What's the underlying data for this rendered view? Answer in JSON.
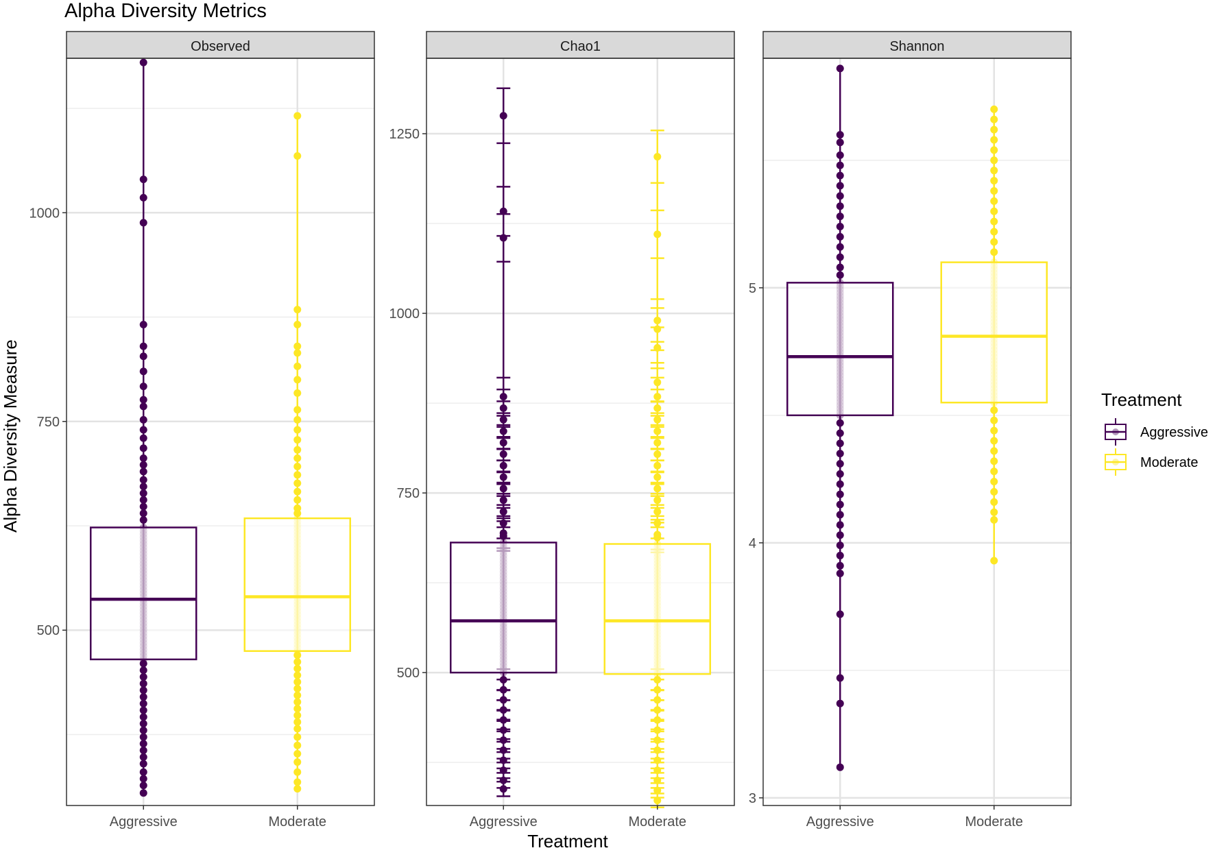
{
  "chart_data": {
    "type": "boxplot",
    "title": "Alpha Diversity Metrics",
    "xlabel": "Treatment",
    "ylabel": "Alpha Diversity Measure",
    "categories": [
      "Aggressive",
      "Moderate"
    ],
    "legend": {
      "title": "Treatment",
      "position": "right",
      "items": [
        {
          "label": "Aggressive",
          "color": "#440154"
        },
        {
          "label": "Moderate",
          "color": "#FDE725"
        }
      ]
    },
    "panels": [
      {
        "facet": "Observed",
        "ylim": [
          290,
          1185
        ],
        "yticks": [
          500,
          750,
          1000
        ],
        "ytick_labels": [
          "500",
          "750",
          "1000"
        ],
        "error_bars": false,
        "groups": [
          {
            "category": "Aggressive",
            "color": "#440154",
            "box": {
              "min": 305,
              "q1": 465,
              "median": 537,
              "q3": 623,
              "max": 1180
            },
            "points": [
              1180,
              1040,
              1018,
              988,
              866,
              840,
              828,
              810,
              792,
              776,
              768,
              752,
              740,
              730,
              718,
              706,
              698,
              690,
              680,
              672,
              664,
              656,
              648,
              640,
              632,
              460,
              452,
              444,
              436,
              428,
              420,
              412,
              404,
              396,
              388,
              380,
              372,
              364,
              356,
              348,
              340,
              330,
              322,
              314,
              305
            ]
          },
          {
            "category": "Moderate",
            "color": "#FDE725",
            "box": {
              "min": 310,
              "q1": 475,
              "median": 540,
              "q3": 634,
              "max": 1116
            },
            "points": [
              1116,
              1068,
              884,
              866,
              840,
              832,
              816,
              800,
              784,
              764,
              752,
              740,
              728,
              716,
              706,
              696,
              686,
              676,
              666,
              656,
              646,
              640,
              470,
              462,
              454,
              446,
              438,
              430,
              422,
              414,
              406,
              398,
              390,
              382,
              372,
              362,
              352,
              342,
              330,
              318,
              310
            ]
          }
        ]
      },
      {
        "facet": "Chao1",
        "ylim": [
          315,
          1355
        ],
        "yticks": [
          500,
          750,
          1000,
          1250
        ],
        "ytick_labels": [
          "500",
          "750",
          "1000",
          "1250"
        ],
        "error_bars": true,
        "groups": [
          {
            "category": "Aggressive",
            "color": "#440154",
            "box": {
              "min": 338,
              "q1": 500,
              "median": 572,
              "q3": 681,
              "max": 1275
            },
            "points": [
              1275,
              1142,
              1105,
              884,
              868,
              852,
              836,
              820,
              804,
              788,
              772,
              756,
              740,
              724,
              708,
              694,
              690,
              490,
              476,
              462,
              448,
              434,
              420,
              406,
              392,
              378,
              364,
              350,
              338
            ]
          },
          {
            "category": "Moderate",
            "color": "#FDE725",
            "box": {
              "min": 322,
              "q1": 498,
              "median": 572,
              "q3": 679,
              "max": 1218
            },
            "points": [
              1218,
              1110,
              990,
              978,
              952,
              904,
              884,
              868,
              852,
              836,
              820,
              804,
              788,
              772,
              756,
              740,
              724,
              708,
              692,
              688,
              490,
              476,
              462,
              448,
              434,
              420,
              406,
              392,
              378,
              364,
              350,
              336,
              322
            ]
          }
        ]
      },
      {
        "facet": "Shannon",
        "ylim": [
          2.97,
          5.9
        ],
        "yticks": [
          3,
          4,
          5
        ],
        "ytick_labels": [
          "3",
          "4",
          "5"
        ],
        "error_bars": false,
        "groups": [
          {
            "category": "Aggressive",
            "color": "#440154",
            "box": {
              "min": 3.12,
              "q1": 4.5,
              "median": 4.73,
              "q3": 5.02,
              "max": 5.86
            },
            "points": [
              5.86,
              5.6,
              5.57,
              5.52,
              5.48,
              5.44,
              5.4,
              5.36,
              5.32,
              5.28,
              5.24,
              5.2,
              5.16,
              5.12,
              5.08,
              5.05,
              4.47,
              4.43,
              4.39,
              4.35,
              4.31,
              4.27,
              4.23,
              4.19,
              4.15,
              4.11,
              4.07,
              4.03,
              3.99,
              3.95,
              3.91,
              3.88,
              3.72,
              3.47,
              3.37,
              3.12
            ]
          },
          {
            "category": "Moderate",
            "color": "#FDE725",
            "box": {
              "min": 3.93,
              "q1": 4.55,
              "median": 4.81,
              "q3": 5.1,
              "max": 5.7
            },
            "points": [
              5.7,
              5.66,
              5.62,
              5.58,
              5.54,
              5.5,
              5.46,
              5.42,
              5.38,
              5.34,
              5.3,
              5.26,
              5.22,
              5.18,
              5.14,
              4.52,
              4.48,
              4.44,
              4.4,
              4.36,
              4.32,
              4.28,
              4.24,
              4.2,
              4.16,
              4.12,
              4.09,
              3.93
            ]
          }
        ]
      }
    ]
  }
}
